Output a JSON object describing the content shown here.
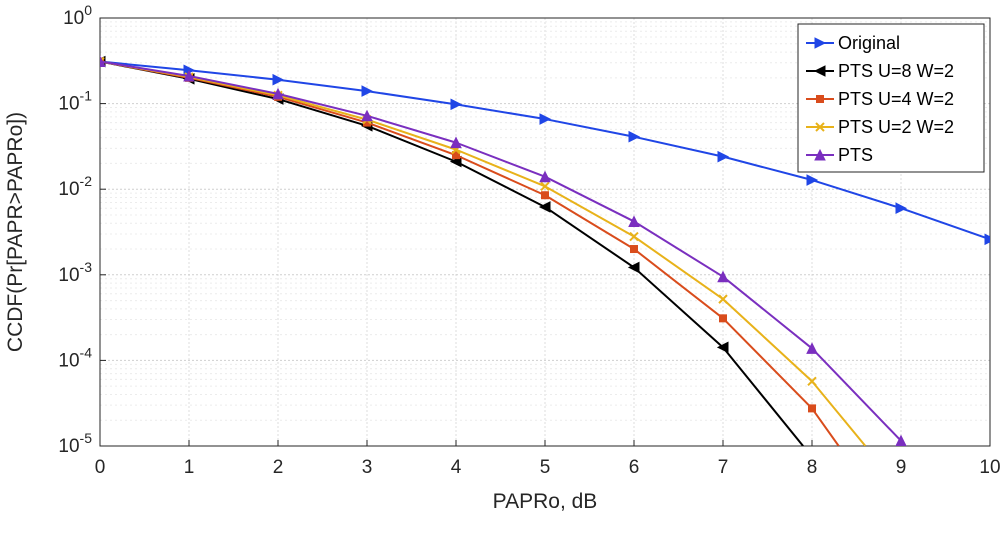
{
  "chart_data": {
    "type": "line",
    "xlabel": "PAPRo, dB",
    "ylabel": "CCDF(Pr[PAPR>PAPRo])",
    "xlim": [
      0,
      10
    ],
    "ylim": [
      1e-05,
      1
    ],
    "yscale": "log",
    "grid": true,
    "legend_position": "top-right",
    "x_ticks": [
      "0",
      "1",
      "2",
      "3",
      "4",
      "5",
      "6",
      "7",
      "8",
      "9",
      "10"
    ],
    "y_ticks": [
      {
        "base": "10",
        "exp": "0",
        "value": 1
      },
      {
        "base": "10",
        "exp": "-1",
        "value": 0.1
      },
      {
        "base": "10",
        "exp": "-2",
        "value": 0.01
      },
      {
        "base": "10",
        "exp": "-3",
        "value": 0.001
      },
      {
        "base": "10",
        "exp": "-4",
        "value": 0.0001
      },
      {
        "base": "10",
        "exp": "-5",
        "value": 1e-05
      }
    ],
    "series": [
      {
        "name": "Original",
        "color": "#2046e6",
        "marker": "triangle-right",
        "x": [
          0,
          1,
          2,
          3,
          4,
          5,
          6,
          7,
          8,
          9,
          10
        ],
        "y": [
          0.31,
          0.245,
          0.19,
          0.14,
          0.098,
          0.066,
          0.041,
          0.024,
          0.0128,
          0.006,
          0.0026
        ]
      },
      {
        "name": "PTS U=8 W=2",
        "color": "#000000",
        "marker": "triangle-left",
        "x": [
          0,
          1,
          2,
          3,
          4,
          5,
          6,
          7,
          7.9
        ],
        "y": [
          0.31,
          0.195,
          0.113,
          0.055,
          0.021,
          0.0062,
          0.00122,
          0.000142,
          1e-05
        ]
      },
      {
        "name": "PTS U=4 W=2",
        "color": "#d94c1c",
        "marker": "square",
        "x": [
          0,
          1,
          2,
          3,
          4,
          5,
          6,
          7,
          8,
          8.3
        ],
        "y": [
          0.31,
          0.2,
          0.12,
          0.06,
          0.025,
          0.0085,
          0.002,
          0.00031,
          2.75e-05,
          1e-05
        ]
      },
      {
        "name": "PTS U=2 W=2",
        "color": "#e8b21a",
        "marker": "x",
        "x": [
          0,
          1,
          2,
          3,
          4,
          5,
          6,
          7,
          8,
          8.6
        ],
        "y": [
          0.31,
          0.205,
          0.125,
          0.065,
          0.029,
          0.0108,
          0.0028,
          0.00052,
          5.7e-05,
          1e-05
        ]
      },
      {
        "name": "PTS",
        "color": "#7a2fbf",
        "marker": "triangle-up",
        "x": [
          0,
          1,
          2,
          3,
          4,
          5,
          6,
          7,
          8,
          9
        ],
        "y": [
          0.31,
          0.21,
          0.13,
          0.072,
          0.035,
          0.014,
          0.0042,
          0.00095,
          0.000138,
          1.15e-05
        ]
      }
    ]
  }
}
